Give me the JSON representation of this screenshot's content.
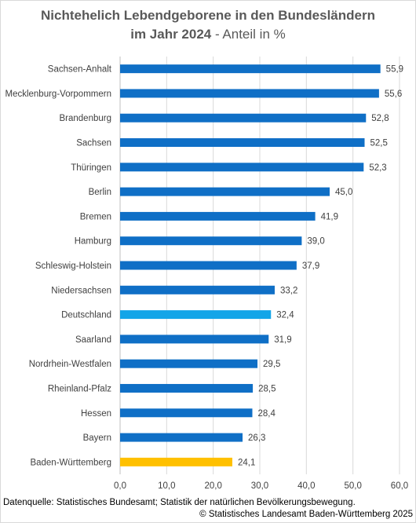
{
  "title": {
    "line1": "Nichtehelich Lebendgeborene in den Bundesländern",
    "line2_bold": "im Jahr 2024",
    "line2_rest": " - Anteil in %"
  },
  "chart_data": {
    "type": "bar",
    "orientation": "horizontal",
    "categories": [
      "Sachsen-Anhalt",
      "Mecklenburg-Vorpommern",
      "Brandenburg",
      "Sachsen",
      "Thüringen",
      "Berlin",
      "Bremen",
      "Hamburg",
      "Schleswig-Holstein",
      "Niedersachsen",
      "Deutschland",
      "Saarland",
      "Nordrhein-Westfalen",
      "Rheinland-Pfalz",
      "Hessen",
      "Bayern",
      "Baden-Württemberg"
    ],
    "values": [
      55.9,
      55.6,
      52.8,
      52.5,
      52.3,
      45.0,
      41.9,
      39.0,
      37.9,
      33.2,
      32.4,
      31.9,
      29.5,
      28.5,
      28.4,
      26.3,
      24.1
    ],
    "value_labels": [
      "55,9",
      "55,6",
      "52,8",
      "52,5",
      "52,3",
      "45,0",
      "41,9",
      "39,0",
      "37,9",
      "33,2",
      "32,4",
      "31,9",
      "29,5",
      "28,5",
      "28,4",
      "26,3",
      "24,1"
    ],
    "colors": {
      "default": "#0f6fc6",
      "Deutschland": "#13a5e8",
      "Baden-Württemberg": "#ffc000"
    },
    "xlim": [
      0,
      60
    ],
    "xticks": [
      0,
      10,
      20,
      30,
      40,
      50,
      60
    ],
    "xtick_labels": [
      "0,0",
      "10,0",
      "20,0",
      "30,0",
      "40,0",
      "50,0",
      "60,0"
    ],
    "grid": true
  },
  "footer": {
    "source": "Datenquelle: Statistisches Bundesamt; Statistik der natürlichen Bevölkerungsbewegung.",
    "copyright": "© Statistisches Landesamt Baden-Württemberg 2025"
  }
}
